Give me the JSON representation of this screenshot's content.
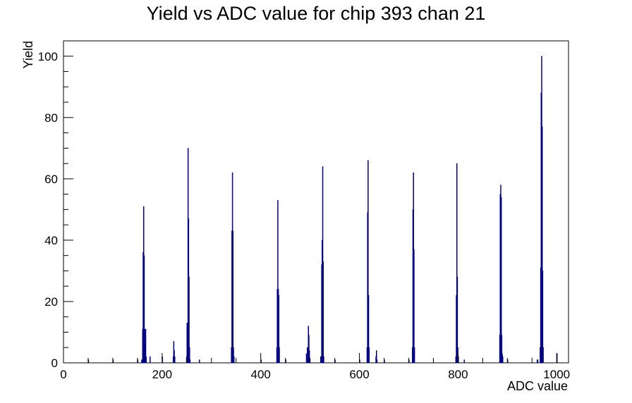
{
  "chart_data": {
    "type": "bar",
    "title": "Yield vs ADC value for chip 393 chan 21",
    "xlabel": "ADC value",
    "ylabel": "Yield",
    "xlim": [
      0,
      1024
    ],
    "ylim": [
      0,
      105
    ],
    "x_ticks": [
      0,
      200,
      400,
      600,
      800,
      1000
    ],
    "y_ticks": [
      0,
      20,
      40,
      60,
      80,
      100
    ],
    "grid": false,
    "legend": "none",
    "line_color": "#000080",
    "bins": [
      {
        "x": 50,
        "y": 1
      },
      {
        "x": 100,
        "y": 1
      },
      {
        "x": 150,
        "y": 1
      },
      {
        "x": 158,
        "y": 1
      },
      {
        "x": 160,
        "y": 11
      },
      {
        "x": 161,
        "y": 36
      },
      {
        "x": 162,
        "y": 51
      },
      {
        "x": 163,
        "y": 35
      },
      {
        "x": 164,
        "y": 11
      },
      {
        "x": 165,
        "y": 6
      },
      {
        "x": 166,
        "y": 11
      },
      {
        "x": 167,
        "y": 2
      },
      {
        "x": 175,
        "y": 2
      },
      {
        "x": 200,
        "y": 2
      },
      {
        "x": 222,
        "y": 2
      },
      {
        "x": 223,
        "y": 7
      },
      {
        "x": 224,
        "y": 4
      },
      {
        "x": 225,
        "y": 2
      },
      {
        "x": 249,
        "y": 2
      },
      {
        "x": 250,
        "y": 13
      },
      {
        "x": 251,
        "y": 10
      },
      {
        "x": 252,
        "y": 70
      },
      {
        "x": 253,
        "y": 47
      },
      {
        "x": 254,
        "y": 28
      },
      {
        "x": 255,
        "y": 5
      },
      {
        "x": 256,
        "y": 1
      },
      {
        "x": 275,
        "y": 1
      },
      {
        "x": 340,
        "y": 5
      },
      {
        "x": 341,
        "y": 43
      },
      {
        "x": 342,
        "y": 62
      },
      {
        "x": 343,
        "y": 43
      },
      {
        "x": 344,
        "y": 5
      },
      {
        "x": 345,
        "y": 2
      },
      {
        "x": 400,
        "y": 1
      },
      {
        "x": 432,
        "y": 5
      },
      {
        "x": 433,
        "y": 24
      },
      {
        "x": 434,
        "y": 53
      },
      {
        "x": 435,
        "y": 24
      },
      {
        "x": 436,
        "y": 22
      },
      {
        "x": 437,
        "y": 5
      },
      {
        "x": 450,
        "y": 1
      },
      {
        "x": 492,
        "y": 3
      },
      {
        "x": 494,
        "y": 5
      },
      {
        "x": 496,
        "y": 12
      },
      {
        "x": 497,
        "y": 9
      },
      {
        "x": 498,
        "y": 4
      },
      {
        "x": 499,
        "y": 1
      },
      {
        "x": 521,
        "y": 2
      },
      {
        "x": 523,
        "y": 32
      },
      {
        "x": 524,
        "y": 40
      },
      {
        "x": 525,
        "y": 64
      },
      {
        "x": 526,
        "y": 33
      },
      {
        "x": 527,
        "y": 2
      },
      {
        "x": 550,
        "y": 1
      },
      {
        "x": 600,
        "y": 1
      },
      {
        "x": 615,
        "y": 5
      },
      {
        "x": 616,
        "y": 49
      },
      {
        "x": 617,
        "y": 66
      },
      {
        "x": 618,
        "y": 22
      },
      {
        "x": 619,
        "y": 5
      },
      {
        "x": 633,
        "y": 2
      },
      {
        "x": 634,
        "y": 4
      },
      {
        "x": 635,
        "y": 1
      },
      {
        "x": 650,
        "y": 1
      },
      {
        "x": 700,
        "y": 1
      },
      {
        "x": 707,
        "y": 5
      },
      {
        "x": 708,
        "y": 50
      },
      {
        "x": 709,
        "y": 62
      },
      {
        "x": 710,
        "y": 37
      },
      {
        "x": 711,
        "y": 5
      },
      {
        "x": 795,
        "y": 2
      },
      {
        "x": 796,
        "y": 22
      },
      {
        "x": 797,
        "y": 65
      },
      {
        "x": 798,
        "y": 28
      },
      {
        "x": 799,
        "y": 5
      },
      {
        "x": 800,
        "y": 2
      },
      {
        "x": 812,
        "y": 1
      },
      {
        "x": 884,
        "y": 9
      },
      {
        "x": 885,
        "y": 55
      },
      {
        "x": 886,
        "y": 58
      },
      {
        "x": 887,
        "y": 54
      },
      {
        "x": 888,
        "y": 9
      },
      {
        "x": 889,
        "y": 3
      },
      {
        "x": 890,
        "y": 2
      },
      {
        "x": 900,
        "y": 1
      },
      {
        "x": 960,
        "y": 1
      },
      {
        "x": 961,
        "y": 1
      },
      {
        "x": 966,
        "y": 5
      },
      {
        "x": 967,
        "y": 31
      },
      {
        "x": 968,
        "y": 88
      },
      {
        "x": 969,
        "y": 100
      },
      {
        "x": 970,
        "y": 77
      },
      {
        "x": 971,
        "y": 30
      },
      {
        "x": 972,
        "y": 5
      },
      {
        "x": 1000,
        "y": 3
      }
    ]
  }
}
